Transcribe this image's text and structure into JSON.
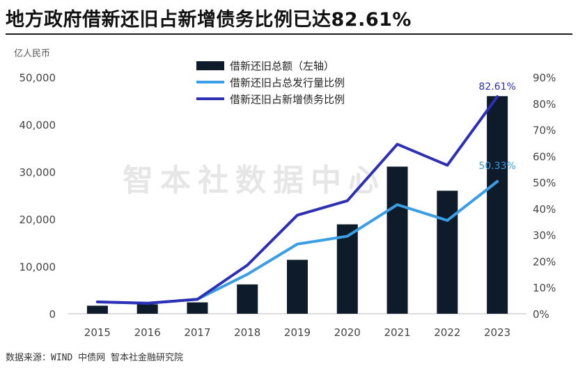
{
  "header": {
    "title": "地方政府借新还旧占新增债务比例已达82.61%",
    "unit": "亿人民币",
    "source": "数据来源：WIND 中债网 智本社金融研究院",
    "watermark": "智本社数据中心"
  },
  "colors": {
    "bar": "#0d1b2a",
    "line_total": "#3a9ee4",
    "line_new": "#2d2fb5",
    "axis_text": "#444444"
  },
  "chart_data": {
    "type": "bar",
    "categories": [
      "2015",
      "2016",
      "2017",
      "2018",
      "2019",
      "2020",
      "2021",
      "2022",
      "2023"
    ],
    "ylim_left": [
      0,
      50000
    ],
    "ylim_right": [
      0,
      90
    ],
    "yticks_left": [
      "0",
      "10,000",
      "20,000",
      "30,000",
      "40,000",
      "50,000"
    ],
    "yticks_right": [
      "0%",
      "10%",
      "20%",
      "30%",
      "40%",
      "50%",
      "60%",
      "70%",
      "80%",
      "90%"
    ],
    "grid": false,
    "legend_position": "top-center",
    "series": [
      {
        "name": "借新还旧总额（左轴）",
        "kind": "bar",
        "axis": "left",
        "values": [
          1700,
          2000,
          2400,
          6200,
          11400,
          18900,
          31100,
          26000,
          46000
        ]
      },
      {
        "name": "借新还旧占总发行量比例",
        "kind": "line",
        "axis": "right",
        "values": [
          4.5,
          4.0,
          5.5,
          15.0,
          26.5,
          29.5,
          41.5,
          35.5,
          50.33
        ]
      },
      {
        "name": "借新还旧占新增债务比例",
        "kind": "line",
        "axis": "right",
        "values": [
          4.5,
          4.0,
          5.5,
          18.5,
          37.5,
          43.0,
          64.5,
          56.5,
          82.61
        ]
      }
    ],
    "annotations": [
      {
        "series": 2,
        "index": 8,
        "text": "82.61%"
      },
      {
        "series": 1,
        "index": 8,
        "text": "50.33%"
      }
    ]
  }
}
